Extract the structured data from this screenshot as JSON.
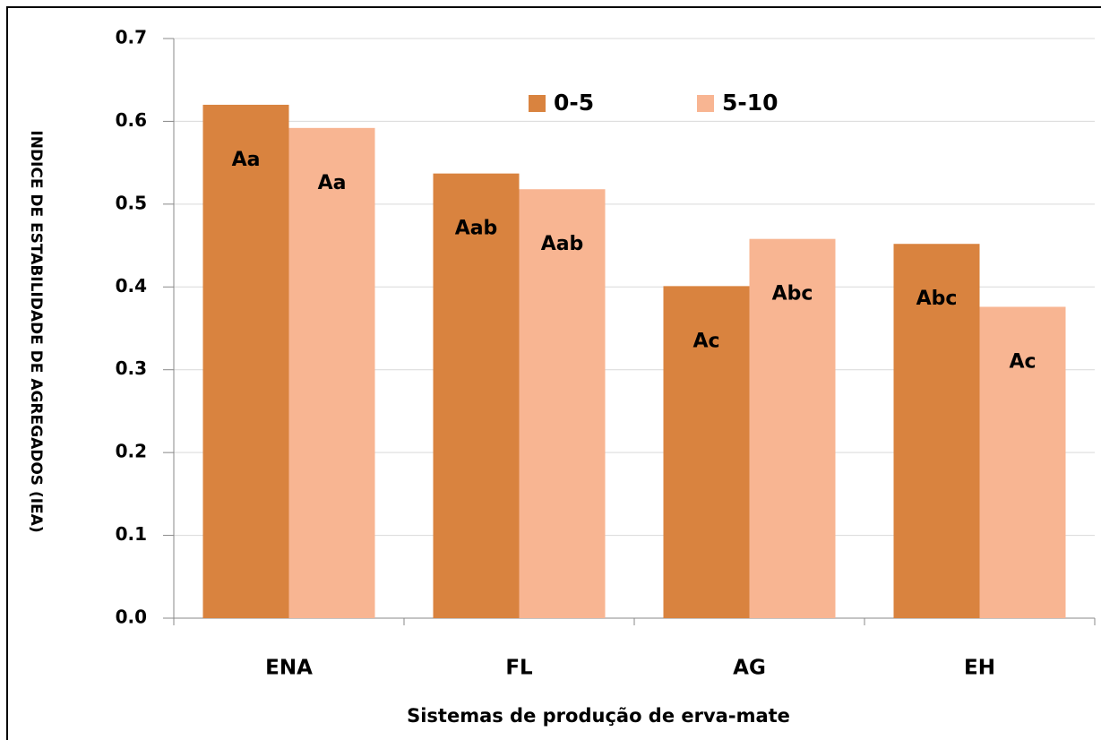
{
  "chart_data": {
    "type": "bar",
    "y_label": "INDICE DE ESTABILIDADE DE AGREGADOS (IEA)",
    "x_label": "Sistemas de produção de erva-mate",
    "categories": [
      "ENA",
      "FL",
      "AG",
      "EH"
    ],
    "series": [
      {
        "name": "0-5",
        "color": "#d9833f",
        "values": [
          0.62,
          0.537,
          0.401,
          0.452
        ],
        "annotations": [
          "Aa",
          "Aab",
          "Ac",
          "Abc"
        ]
      },
      {
        "name": "5-10",
        "color": "#f8b592",
        "values": [
          0.592,
          0.518,
          0.458,
          0.376
        ],
        "annotations": [
          "Aa",
          "Aab",
          "Abc",
          "Ac"
        ]
      }
    ],
    "ylim": [
      0,
      0.7
    ],
    "yticks": [
      {
        "value": 0,
        "label": "0.0"
      },
      0.1,
      0.2,
      0.3,
      0.4,
      0.5,
      0.6,
      0.7
    ],
    "grid": true,
    "legend": "top"
  }
}
